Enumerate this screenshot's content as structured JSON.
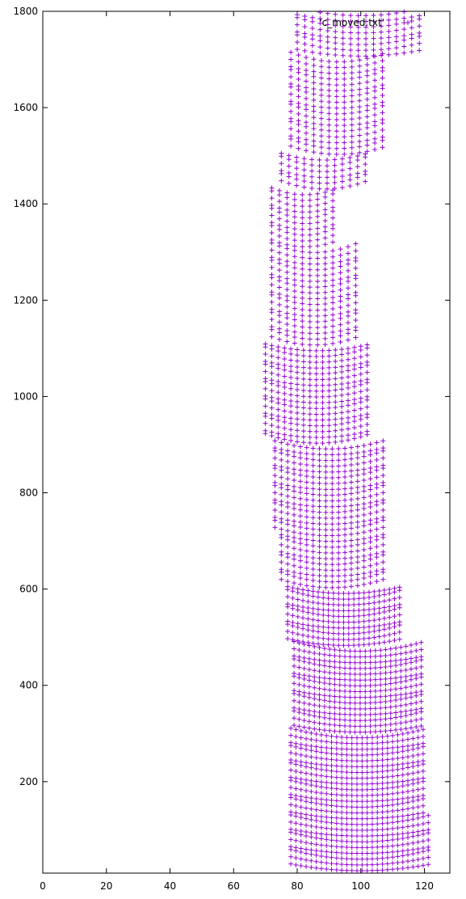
{
  "chart_data": {
    "type": "scatter",
    "title": "",
    "xlabel": "",
    "ylabel": "",
    "xlim": [
      0,
      128
    ],
    "ylim": [
      10,
      1800
    ],
    "xticks": [
      "0",
      "20",
      "40",
      "60",
      "80",
      "100",
      "120"
    ],
    "yticks": [
      "200",
      "400",
      "600",
      "800",
      "1000",
      "1200",
      "1400",
      "1600",
      "1800"
    ],
    "grid": false,
    "legend_position": "top-right",
    "marker": "+",
    "series": [
      {
        "name": "'c_moved.txt'",
        "color": "#9400d3",
        "description_of_bands": [
          {
            "y": [
              10,
              120
            ],
            "x": [
              78,
              122
            ]
          },
          {
            "y": [
              120,
              300
            ],
            "x": [
              78,
              121
            ]
          },
          {
            "y": [
              300,
              480
            ],
            "x": [
              79,
              120
            ]
          },
          {
            "y": [
              480,
              600
            ],
            "x": [
              77,
              113
            ]
          },
          {
            "y": [
              600,
              700
            ],
            "x": [
              75,
              107
            ]
          },
          {
            "y": [
              700,
              900
            ],
            "x": [
              73,
              107
            ]
          },
          {
            "y": [
              900,
              1100
            ],
            "x": [
              70,
              103
            ]
          },
          {
            "y": [
              1100,
              1300
            ],
            "x": [
              72,
              99
            ]
          },
          {
            "y": [
              1300,
              1420
            ],
            "x": [
              72,
              93
            ]
          },
          {
            "y": [
              1420,
              1500
            ],
            "x": [
              75,
              102
            ]
          },
          {
            "y": [
              1500,
              1700
            ],
            "x": [
              78,
              108
            ]
          },
          {
            "y": [
              1700,
              1800
            ],
            "x": [
              80,
              120
            ]
          }
        ]
      }
    ]
  }
}
